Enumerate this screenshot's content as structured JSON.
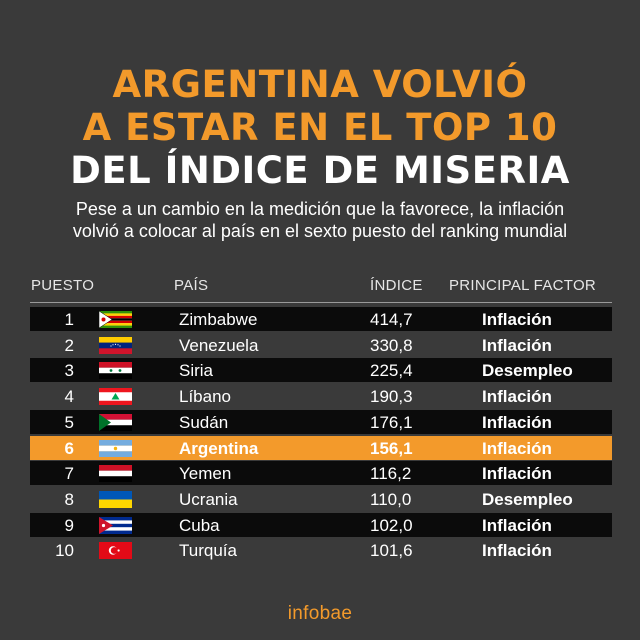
{
  "title": {
    "line1": "ARGENTINA VOLVIÓ",
    "line2": "A ESTAR EN EL TOP 10",
    "line3": "DEL ÍNDICE DE MISERIA"
  },
  "subtitle": {
    "line1": "Pese a un cambio en la medición que la favorece, la inflación",
    "line2": "volvió a colocar al país en el sexto puesto del ranking mundial"
  },
  "headers": {
    "puesto": "PUESTO",
    "pais": "PAÍS",
    "indice": "ÍNDICE",
    "factor": "PRINCIPAL FACTOR"
  },
  "brand": "infobae",
  "colors": {
    "background": "#3a3a3a",
    "accent": "#f39a2b",
    "row_dark": "#0b0b0b"
  },
  "chart_data": {
    "type": "table",
    "columns": [
      "PUESTO",
      "PAÍS",
      "ÍNDICE",
      "PRINCIPAL FACTOR"
    ],
    "highlight_rank": "6",
    "rows": [
      {
        "rank": "1",
        "country": "Zimbabwe",
        "index": "414,7",
        "factor": "Inflación",
        "flag": "zimbabwe-flag"
      },
      {
        "rank": "2",
        "country": "Venezuela",
        "index": "330,8",
        "factor": "Inflación",
        "flag": "venezuela-flag"
      },
      {
        "rank": "3",
        "country": "Siria",
        "index": "225,4",
        "factor": "Desempleo",
        "flag": "syria-flag"
      },
      {
        "rank": "4",
        "country": "Líbano",
        "index": "190,3",
        "factor": "Inflación",
        "flag": "lebanon-flag"
      },
      {
        "rank": "5",
        "country": "Sudán",
        "index": "176,1",
        "factor": "Inflación",
        "flag": "sudan-flag"
      },
      {
        "rank": "6",
        "country": "Argentina",
        "index": "156,1",
        "factor": "Inflación",
        "flag": "argentina-flag"
      },
      {
        "rank": "7",
        "country": "Yemen",
        "index": "116,2",
        "factor": "Inflación",
        "flag": "yemen-flag"
      },
      {
        "rank": "8",
        "country": "Ucrania",
        "index": "110,0",
        "factor": "Desempleo",
        "flag": "ukraine-flag"
      },
      {
        "rank": "9",
        "country": "Cuba",
        "index": "102,0",
        "factor": "Inflación",
        "flag": "cuba-flag"
      },
      {
        "rank": "10",
        "country": "Turquía",
        "index": "101,6",
        "factor": "Inflación",
        "flag": "turkey-flag"
      }
    ]
  }
}
